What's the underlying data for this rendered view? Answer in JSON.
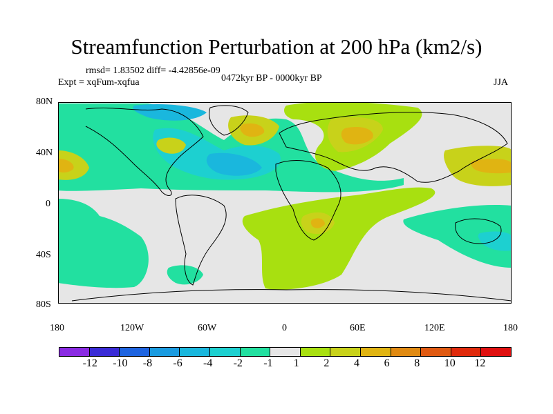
{
  "title": "Streamfunction Perturbation at 200 hPa (km2/s)",
  "stats": "rmsd= 1.83502 diff= -4.42856e-09",
  "experiment": "Expt = xqFum-xqfua",
  "period": "0472kyr BP - 0000kyr BP",
  "season": "JJA",
  "lat_ticks": [
    "80N",
    "40N",
    "0",
    "40S",
    "80S"
  ],
  "lon_ticks": [
    "180",
    "120W",
    "60W",
    "0",
    "60E",
    "120E",
    "180"
  ],
  "colorbar": {
    "labels": [
      "-12",
      "-10",
      "-8",
      "-6",
      "-4",
      "-2",
      "-1",
      "1",
      "2",
      "4",
      "6",
      "8",
      "10",
      "12"
    ],
    "colors": [
      "#8a2be2",
      "#3a2bd6",
      "#1e64e0",
      "#1a9be0",
      "#1ab7dd",
      "#1dd0d0",
      "#22e0a0",
      "#e6e6e6",
      "#a8e010",
      "#c8d21a",
      "#e0b412",
      "#e08a12",
      "#e05a12",
      "#e02a0c",
      "#e01010"
    ]
  },
  "palette": {
    "neutral": "#e6e6e6",
    "neg1": "#22e0a0",
    "neg2": "#1dd0d0",
    "neg4": "#1ab7dd",
    "pos1": "#a8e010",
    "pos2": "#c8d21a",
    "pos4": "#e0b412"
  }
}
